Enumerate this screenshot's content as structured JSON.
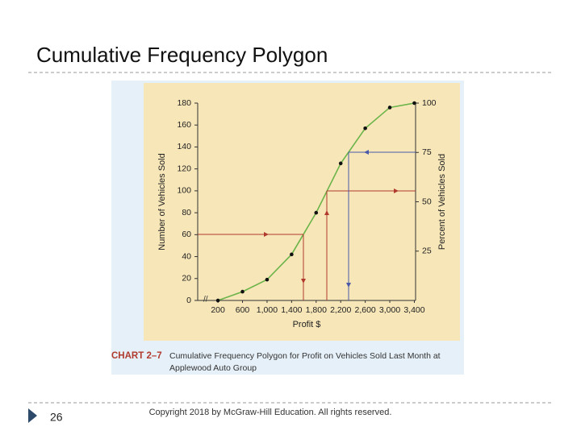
{
  "slide": {
    "title": "Cumulative Frequency Polygon",
    "page_number": "26",
    "copyright": "Copyright  2018 by McGraw-Hill Education. All rights reserved."
  },
  "chart_data": {
    "type": "line",
    "caption_label": "CHART 2–7",
    "caption_line1": "Cumulative Frequency Polygon for Profit on Vehicles Sold Last Month at",
    "caption_line2": "Applewood Auto Group",
    "x_label": "Profit $",
    "y_label": "Number of Vehicles Sold",
    "y2_label": "Percent of Vehicles Sold",
    "x": [
      200,
      600,
      1000,
      1400,
      1800,
      2200,
      2600,
      3000,
      3400
    ],
    "values": [
      0,
      8,
      19,
      42,
      80,
      125,
      157,
      176,
      180
    ],
    "color": "#6cb44a",
    "xlim": [
      -130,
      3420
    ],
    "xticks": [
      200,
      600,
      {
        "value": 1000,
        "label": "1,000"
      },
      {
        "value": 1400,
        "label": "1,400"
      },
      {
        "value": 1800,
        "label": "1,800"
      },
      {
        "value": 2200,
        "label": "2,200"
      },
      {
        "value": 2600,
        "label": "2,600"
      },
      {
        "value": 3000,
        "label": "3,000"
      },
      {
        "value": 3400,
        "label": "3,400"
      }
    ],
    "ylim": [
      0,
      180
    ],
    "yticks": [
      0,
      20,
      40,
      60,
      80,
      100,
      120,
      140,
      160,
      180
    ],
    "y2lim": [
      0,
      100
    ],
    "y2ticks": [
      25,
      50,
      75,
      100
    ]
  }
}
